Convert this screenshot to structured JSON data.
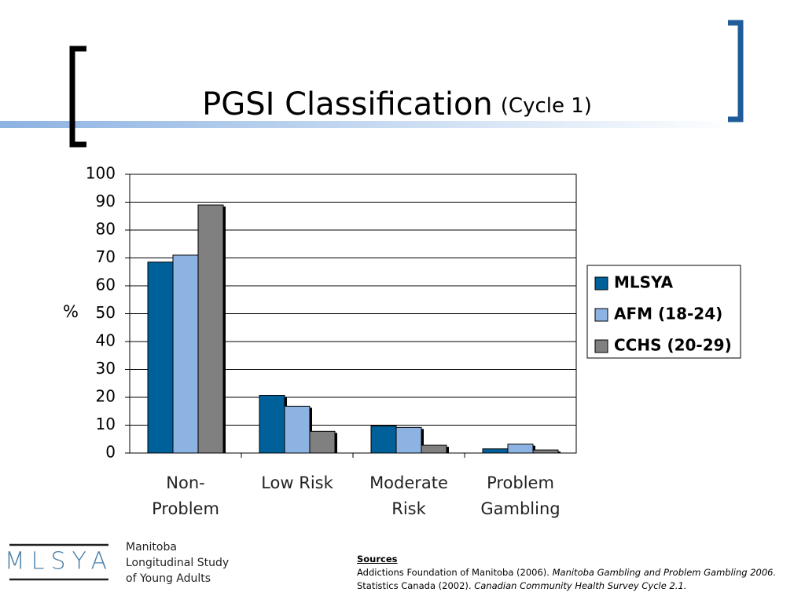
{
  "chart_data": {
    "type": "bar",
    "title": "PGSI Classification",
    "subtitle": "(Cycle 1)",
    "y_label": "%",
    "categories": [
      "Non-Problem",
      "Low Risk",
      "Moderate Risk",
      "Problem Gambling"
    ],
    "series": [
      {
        "name": "MLSYA",
        "color": "#00609a",
        "values": [
          68.5,
          20.7,
          9.7,
          1.5
        ]
      },
      {
        "name": "AFM (18-24)",
        "color": "#8db3e2",
        "values": [
          71,
          16.8,
          9.2,
          3.2
        ]
      },
      {
        "name": "CCHS (20-29)",
        "color": "#808080",
        "values": [
          89,
          7.8,
          2.8,
          1.1
        ]
      }
    ],
    "ylim": [
      0,
      100
    ],
    "yticks": [
      0,
      10,
      20,
      30,
      40,
      50,
      60,
      70,
      80,
      90,
      100
    ],
    "grid": true,
    "legend": "right"
  },
  "logo": {
    "mark": "MLSYA",
    "lines": [
      "Manitoba",
      "Longitudinal Study",
      "of Young Adults"
    ]
  },
  "sources": {
    "heading": "Sources",
    "lines": [
      [
        "Addictions Foundation of Manitoba (2006). ",
        "Manitoba Gambling and Problem Gambling 2006."
      ],
      [
        "Statistics Canada (2002). ",
        "Canadian Community Health Survey Cycle 2.1."
      ]
    ]
  }
}
